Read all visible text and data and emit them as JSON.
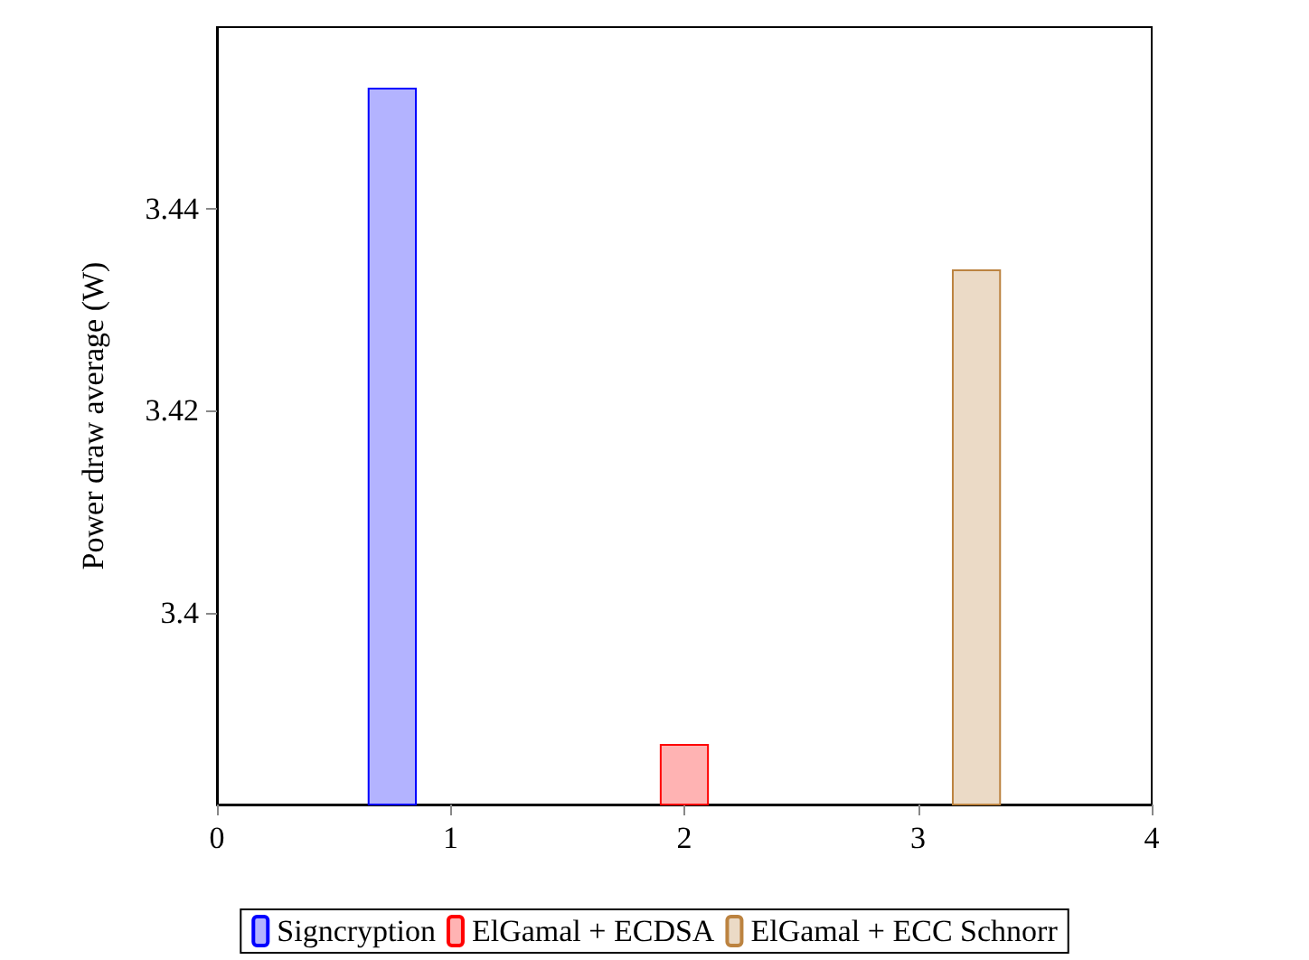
{
  "chart_data": {
    "type": "bar",
    "ylabel": "Power draw average (W)",
    "xlim": [
      0,
      4
    ],
    "xticks": [
      0,
      1,
      2,
      3,
      4
    ],
    "ylim": [
      3.381,
      3.458
    ],
    "yticks": [
      3.4,
      3.42,
      3.44
    ],
    "series": [
      {
        "name": "Signcryption",
        "color": "#b3b3ff",
        "x": [
          0.75
        ],
        "values": [
          3.452
        ]
      },
      {
        "name": "ElGamal + ECDSA",
        "color": "#ffb3b3",
        "x": [
          2
        ],
        "values": [
          3.387
        ]
      },
      {
        "name": "ElGamal + ECC Schnorr",
        "color": "#ebdac6",
        "x": [
          3.25
        ],
        "values": [
          3.434
        ]
      }
    ],
    "legend": "bottom",
    "grid": false
  }
}
